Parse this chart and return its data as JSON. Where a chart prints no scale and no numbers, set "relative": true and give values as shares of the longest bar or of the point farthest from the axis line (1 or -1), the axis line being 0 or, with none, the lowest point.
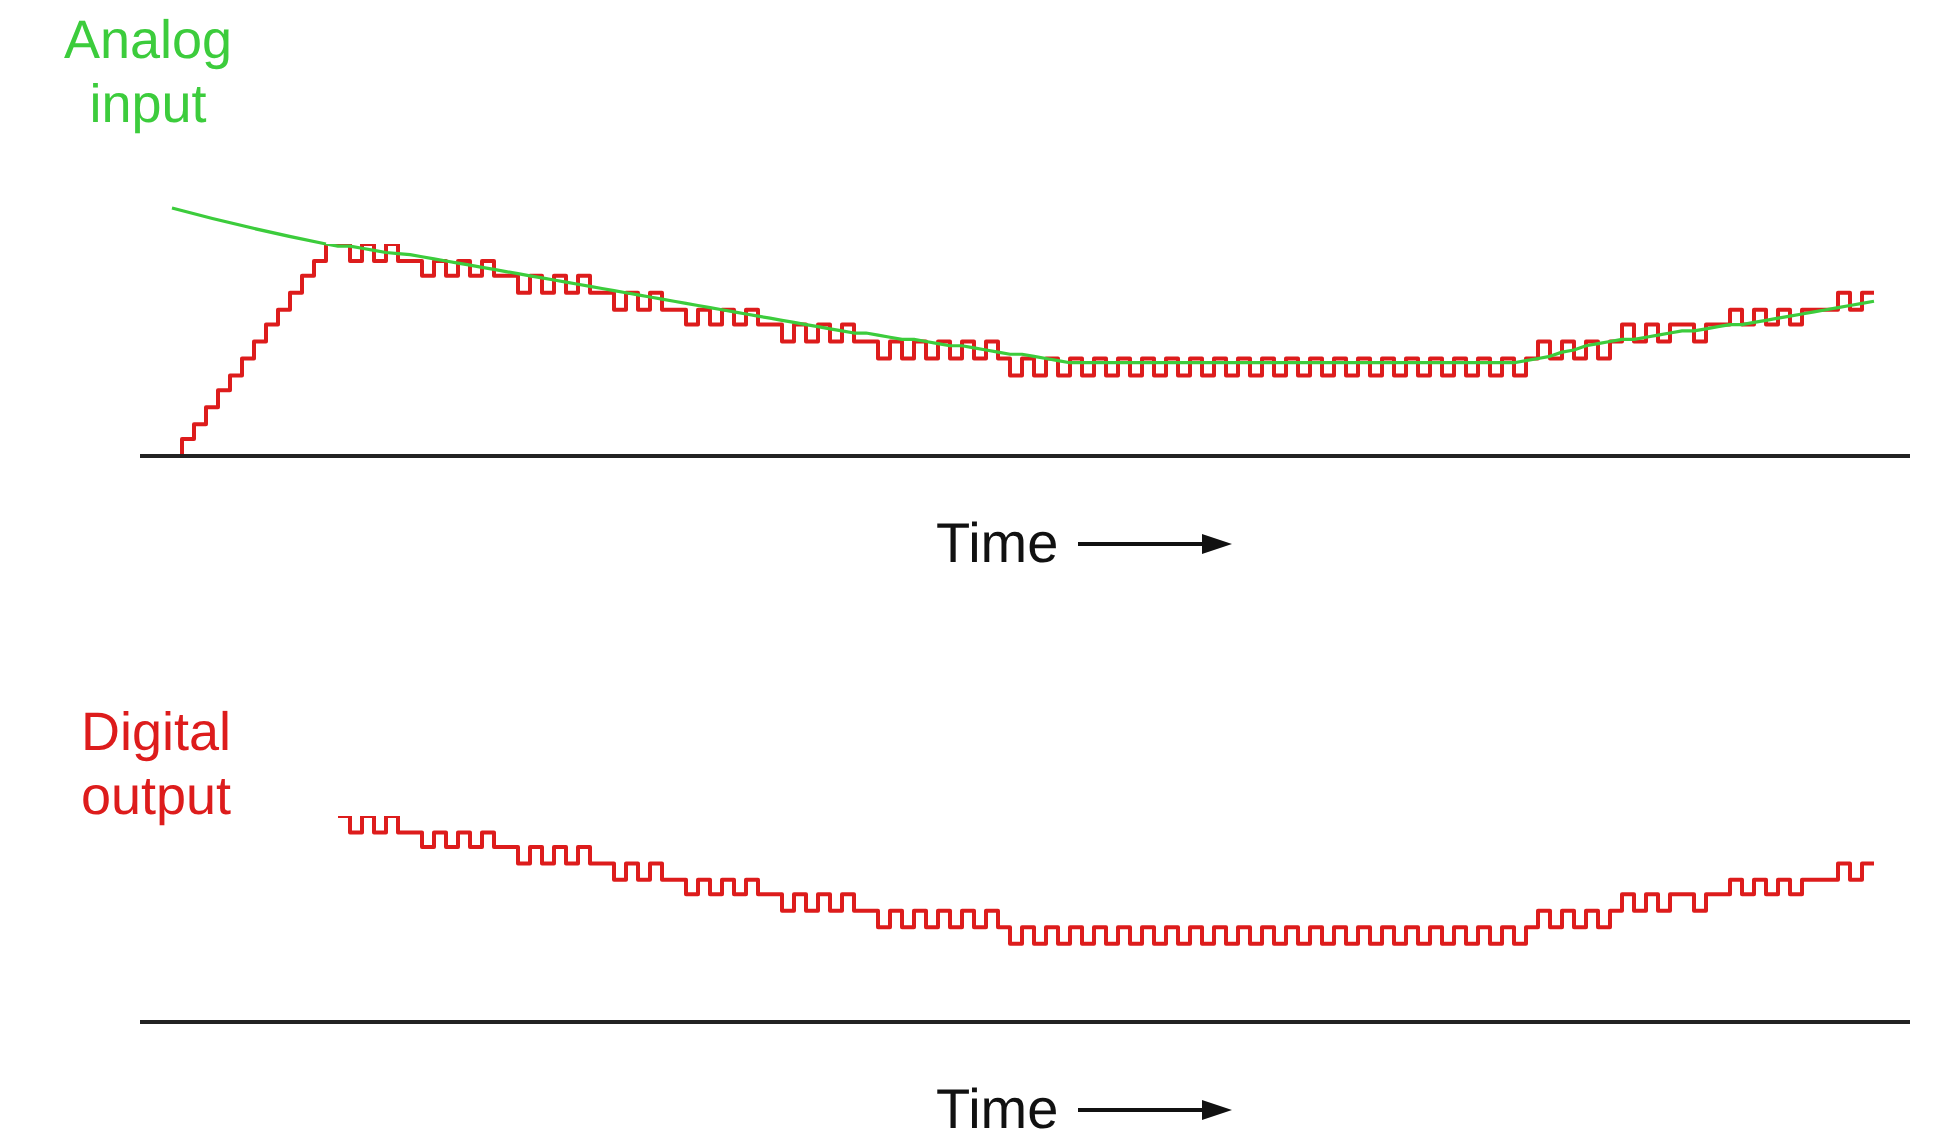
{
  "chart_data": [
    {
      "type": "line",
      "relative": true,
      "xlabel": "Time",
      "marker": "none",
      "legend": false,
      "categories": [
        null,
        null,
        null,
        null,
        null,
        null,
        null,
        null,
        null,
        null,
        null,
        null,
        null,
        null,
        null,
        null,
        null,
        null,
        null,
        null,
        null,
        null,
        null,
        null,
        null,
        null,
        null,
        null,
        null,
        null,
        null,
        null,
        null,
        null,
        null,
        null,
        null,
        null,
        null,
        null,
        null,
        null,
        null,
        null,
        null,
        null,
        null,
        null,
        null,
        null,
        null,
        null,
        null,
        null,
        null,
        null,
        null,
        null,
        null,
        null,
        null,
        null,
        null,
        null,
        null,
        null,
        null,
        null,
        null,
        null,
        null,
        null,
        null,
        null,
        null,
        null,
        null,
        null,
        null,
        null,
        null,
        null,
        null,
        null,
        null,
        null,
        null,
        null,
        null,
        null,
        null,
        null,
        null,
        null,
        null,
        null,
        null,
        null,
        null,
        null,
        null,
        null,
        null,
        null,
        null,
        null,
        null,
        null,
        null,
        null,
        null,
        null,
        null,
        null,
        null,
        null,
        null,
        null,
        null,
        null,
        null,
        null,
        null,
        null,
        null,
        null,
        null,
        null,
        null,
        null,
        null,
        null,
        null,
        null,
        null,
        null,
        null,
        null,
        null,
        null,
        null,
        null,
        null
      ],
      "series": [
        {
          "type": "step",
          "color": "#dd1c1c",
          "values": [
            0,
            0.08,
            0.15,
            0.23,
            0.31,
            0.38,
            0.46,
            0.54,
            0.62,
            0.69,
            0.77,
            0.85,
            0.92,
            1,
            1,
            0.92,
            1,
            0.92,
            1,
            0.92,
            0.92,
            0.85,
            0.92,
            0.85,
            0.92,
            0.85,
            0.92,
            0.85,
            0.85,
            0.77,
            0.85,
            0.77,
            0.85,
            0.77,
            0.85,
            0.77,
            0.77,
            0.69,
            0.77,
            0.69,
            0.77,
            0.69,
            0.69,
            0.62,
            0.69,
            0.62,
            0.69,
            0.62,
            0.69,
            0.62,
            0.62,
            0.54,
            0.62,
            0.54,
            0.62,
            0.54,
            0.62,
            0.54,
            0.54,
            0.46,
            0.54,
            0.46,
            0.54,
            0.46,
            0.54,
            0.46,
            0.54,
            0.46,
            0.54,
            0.46,
            0.38,
            0.46,
            0.38,
            0.46,
            0.38,
            0.46,
            0.38,
            0.46,
            0.38,
            0.46,
            0.38,
            0.46,
            0.38,
            0.46,
            0.38,
            0.46,
            0.38,
            0.46,
            0.38,
            0.46,
            0.38,
            0.46,
            0.38,
            0.46,
            0.38,
            0.46,
            0.38,
            0.46,
            0.38,
            0.46,
            0.38,
            0.46,
            0.38,
            0.46,
            0.38,
            0.46,
            0.38,
            0.46,
            0.38,
            0.46,
            0.38,
            0.46,
            0.38,
            0.46,
            0.54,
            0.46,
            0.54,
            0.46,
            0.54,
            0.46,
            0.54,
            0.62,
            0.54,
            0.62,
            0.54,
            0.62,
            0.62,
            0.54,
            0.62,
            0.62,
            0.69,
            0.62,
            0.69,
            0.62,
            0.69,
            0.62,
            0.69,
            0.69,
            0.69,
            0.77,
            0.69,
            0.77,
            0.77
          ]
        },
        {
          "type": "line",
          "name": "Analog input",
          "color": "#3ccc3c",
          "values": [
            null,
            null,
            null,
            null,
            null,
            null,
            null,
            null,
            null,
            null,
            null,
            null,
            null,
            1,
            0.99,
            0.99,
            0.98,
            0.97,
            0.96,
            0.955,
            0.95,
            0.94,
            0.93,
            0.92,
            0.91,
            0.9,
            0.89,
            0.88,
            0.87,
            0.86,
            0.85,
            0.84,
            0.83,
            0.82,
            0.81,
            0.8,
            0.79,
            0.78,
            0.77,
            0.76,
            0.75,
            0.74,
            0.73,
            0.72,
            0.71,
            0.7,
            0.69,
            0.68,
            0.67,
            0.66,
            0.65,
            0.64,
            0.63,
            0.62,
            0.61,
            0.6,
            0.59,
            0.58,
            0.58,
            0.57,
            0.56,
            0.55,
            0.55,
            0.54,
            0.53,
            0.52,
            0.52,
            0.51,
            0.5,
            0.49,
            0.48,
            0.48,
            0.47,
            0.46,
            0.45,
            0.44,
            0.44,
            0.44,
            0.44,
            0.44,
            0.44,
            0.44,
            0.44,
            0.44,
            0.44,
            0.44,
            0.44,
            0.44,
            0.44,
            0.44,
            0.44,
            0.44,
            0.44,
            0.44,
            0.44,
            0.44,
            0.44,
            0.44,
            0.44,
            0.44,
            0.44,
            0.44,
            0.44,
            0.44,
            0.44,
            0.44,
            0.44,
            0.44,
            0.44,
            0.44,
            0.44,
            0.44,
            0.44,
            0.45,
            0.46,
            0.47,
            0.49,
            0.5,
            0.52,
            0.53,
            0.54,
            0.55,
            0.55,
            0.56,
            0.57,
            0.58,
            0.59,
            0.59,
            0.6,
            0.61,
            0.62,
            0.62,
            0.63,
            0.64,
            0.65,
            0.66,
            0.67,
            0.68,
            0.69,
            0.7,
            0.71,
            0.72,
            0.73
          ]
        }
      ]
    },
    {
      "type": "step",
      "relative": true,
      "xlabel": "Time",
      "marker": "none",
      "legend": false,
      "categories": [
        null,
        null,
        null,
        null,
        null,
        null,
        null,
        null,
        null,
        null,
        null,
        null,
        null,
        null,
        null,
        null,
        null,
        null,
        null,
        null,
        null,
        null,
        null,
        null,
        null,
        null,
        null,
        null,
        null,
        null,
        null,
        null,
        null,
        null,
        null,
        null,
        null,
        null,
        null,
        null,
        null,
        null,
        null,
        null,
        null,
        null,
        null,
        null,
        null,
        null,
        null,
        null,
        null,
        null,
        null,
        null,
        null,
        null,
        null,
        null,
        null,
        null,
        null,
        null,
        null,
        null,
        null,
        null,
        null,
        null,
        null,
        null,
        null,
        null,
        null,
        null,
        null,
        null,
        null,
        null,
        null,
        null,
        null,
        null,
        null,
        null,
        null,
        null,
        null,
        null,
        null,
        null,
        null,
        null,
        null,
        null,
        null,
        null,
        null,
        null,
        null,
        null,
        null,
        null,
        null,
        null,
        null,
        null,
        null,
        null,
        null,
        null,
        null,
        null,
        null,
        null,
        null,
        null,
        null,
        null,
        null,
        null,
        null,
        null,
        null,
        null,
        null,
        null,
        null,
        null,
        null,
        null,
        null,
        null,
        null,
        null,
        null,
        null,
        null,
        null,
        null,
        null,
        null
      ],
      "series": [
        {
          "name": "Digital output",
          "color": "#dd1c1c",
          "values": [
            null,
            null,
            null,
            null,
            null,
            null,
            null,
            null,
            null,
            null,
            null,
            null,
            null,
            null,
            1,
            0.92,
            1,
            0.92,
            1,
            0.92,
            0.92,
            0.85,
            0.92,
            0.85,
            0.92,
            0.85,
            0.92,
            0.85,
            0.85,
            0.77,
            0.85,
            0.77,
            0.85,
            0.77,
            0.85,
            0.77,
            0.77,
            0.69,
            0.77,
            0.69,
            0.77,
            0.69,
            0.69,
            0.62,
            0.69,
            0.62,
            0.69,
            0.62,
            0.69,
            0.62,
            0.62,
            0.54,
            0.62,
            0.54,
            0.62,
            0.54,
            0.62,
            0.54,
            0.54,
            0.46,
            0.54,
            0.46,
            0.54,
            0.46,
            0.54,
            0.46,
            0.54,
            0.46,
            0.54,
            0.46,
            0.38,
            0.46,
            0.38,
            0.46,
            0.38,
            0.46,
            0.38,
            0.46,
            0.38,
            0.46,
            0.38,
            0.46,
            0.38,
            0.46,
            0.38,
            0.46,
            0.38,
            0.46,
            0.38,
            0.46,
            0.38,
            0.46,
            0.38,
            0.46,
            0.38,
            0.46,
            0.38,
            0.46,
            0.38,
            0.46,
            0.38,
            0.46,
            0.38,
            0.46,
            0.38,
            0.46,
            0.38,
            0.46,
            0.38,
            0.46,
            0.38,
            0.46,
            0.38,
            0.46,
            0.54,
            0.46,
            0.54,
            0.46,
            0.54,
            0.46,
            0.54,
            0.62,
            0.54,
            0.62,
            0.54,
            0.62,
            0.62,
            0.54,
            0.62,
            0.62,
            0.69,
            0.62,
            0.69,
            0.62,
            0.69,
            0.62,
            0.69,
            0.69,
            0.69,
            0.77,
            0.69,
            0.77,
            0.77
          ]
        }
      ]
    }
  ]
}
